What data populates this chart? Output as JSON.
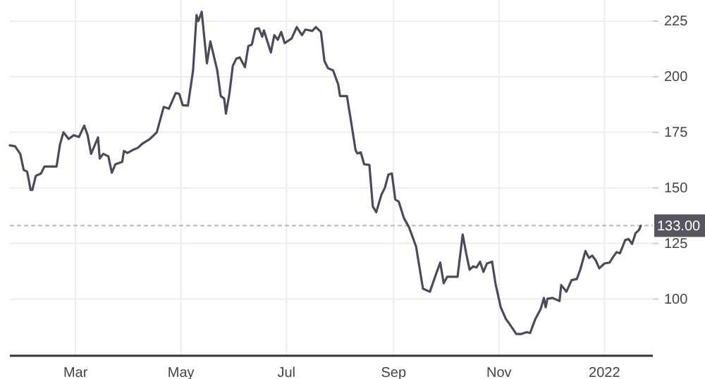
{
  "chart_data": {
    "type": "line",
    "x": [
      "2021-01-22",
      "2021-01-25",
      "2021-01-28",
      "2021-01-30",
      "2021-02-01",
      "2021-02-03",
      "2021-02-04",
      "2021-02-06",
      "2021-02-09",
      "2021-02-11",
      "2021-02-18",
      "2021-02-20",
      "2021-02-22",
      "2021-02-25",
      "2021-02-28",
      "2021-03-03",
      "2021-03-06",
      "2021-03-08",
      "2021-03-10",
      "2021-03-14",
      "2021-03-15",
      "2021-03-17",
      "2021-03-20",
      "2021-03-22",
      "2021-03-24",
      "2021-03-28",
      "2021-03-29",
      "2021-03-31",
      "2021-04-03",
      "2021-04-06",
      "2021-04-09",
      "2021-04-13",
      "2021-04-17",
      "2021-04-21",
      "2021-04-24",
      "2021-04-28",
      "2021-04-30",
      "2021-05-02",
      "2021-05-05",
      "2021-05-08",
      "2021-05-10",
      "2021-05-11",
      "2021-05-13",
      "2021-05-16",
      "2021-05-18",
      "2021-05-22",
      "2021-05-24",
      "2021-05-26",
      "2021-05-27",
      "2021-05-29",
      "2021-05-31",
      "2021-06-02",
      "2021-06-04",
      "2021-06-07",
      "2021-06-09",
      "2021-06-11",
      "2021-06-13",
      "2021-06-15",
      "2021-06-17",
      "2021-06-18",
      "2021-06-22",
      "2021-06-24",
      "2021-06-26",
      "2021-06-28",
      "2021-06-30",
      "2021-07-04",
      "2021-07-07",
      "2021-07-10",
      "2021-07-12",
      "2021-07-16",
      "2021-07-18",
      "2021-07-21",
      "2021-07-23",
      "2021-07-25",
      "2021-07-28",
      "2021-07-31",
      "2021-08-01",
      "2021-08-05",
      "2021-08-07",
      "2021-08-10",
      "2021-08-11",
      "2021-08-13",
      "2021-08-15",
      "2021-08-18",
      "2021-08-20",
      "2021-08-22",
      "2021-08-25",
      "2021-08-27",
      "2021-08-29",
      "2021-08-31",
      "2021-09-02",
      "2021-09-04",
      "2021-09-07",
      "2021-09-10",
      "2021-09-14",
      "2021-09-18",
      "2021-09-22",
      "2021-09-26",
      "2021-09-28",
      "2021-09-30",
      "2021-10-02",
      "2021-10-08",
      "2021-10-11",
      "2021-10-13",
      "2021-10-15",
      "2021-10-17",
      "2021-10-19",
      "2021-10-21",
      "2021-10-23",
      "2021-10-25",
      "2021-10-28",
      "2021-10-30",
      "2021-11-02",
      "2021-11-05",
      "2021-11-07",
      "2021-11-11",
      "2021-11-14",
      "2021-11-17",
      "2021-11-19",
      "2021-11-22",
      "2021-11-25",
      "2021-11-27",
      "2021-11-28",
      "2021-11-29",
      "2021-12-02",
      "2021-12-06",
      "2021-12-07",
      "2021-12-10",
      "2021-12-13",
      "2021-12-16",
      "2021-12-18",
      "2021-12-21",
      "2021-12-23",
      "2021-12-25",
      "2021-12-27",
      "2021-12-29",
      "2022-01-01",
      "2022-01-04",
      "2022-01-06",
      "2022-01-08",
      "2022-01-10",
      "2022-01-13",
      "2022-01-15",
      "2022-01-17",
      "2022-01-19",
      "2022-01-21",
      "2022-01-22"
    ],
    "series": [
      {
        "color": "#4b4b5c",
        "values": [
          169.1,
          168.7,
          165.3,
          158.1,
          157.3,
          149.1,
          149.1,
          155.4,
          156.5,
          159.6,
          159.6,
          169.5,
          175,
          172,
          173.7,
          172.9,
          178,
          173.7,
          165.3,
          172.7,
          163.2,
          165.3,
          164.2,
          156.8,
          160.6,
          161.7,
          166.6,
          165.7,
          167,
          168,
          170.1,
          172,
          175,
          186.4,
          185.6,
          192.7,
          192.3,
          187.2,
          187,
          202.8,
          227.7,
          225,
          229.2,
          206,
          215.9,
          202.8,
          191.3,
          190.2,
          183.4,
          192.3,
          204.9,
          208.1,
          208.7,
          204.3,
          213.8,
          214.4,
          221.4,
          221.8,
          218,
          220.8,
          210.9,
          218.7,
          216.6,
          220.1,
          215.1,
          217.2,
          222.3,
          218.7,
          221.2,
          220.6,
          222.3,
          220.1,
          207.1,
          203.9,
          202.8,
          196.5,
          191.3,
          191.3,
          181.8,
          167,
          165.5,
          166,
          160.6,
          160.3,
          141.6,
          139.1,
          147,
          150.1,
          156,
          156.5,
          144.8,
          143.8,
          136.4,
          132.2,
          123.7,
          104.7,
          103.3,
          112.2,
          116.4,
          107.1,
          110,
          110,
          129,
          120.6,
          113.2,
          114.7,
          114.2,
          116.8,
          112.2,
          116,
          116.8,
          106.8,
          96.3,
          91,
          88.9,
          84.3,
          84.3,
          85.1,
          84.7,
          91,
          95.3,
          100.5,
          96.3,
          100.1,
          100.5,
          99.1,
          106.3,
          103.3,
          108.5,
          109,
          113.2,
          121.6,
          118.5,
          119.5,
          117.4,
          113.8,
          116,
          116.4,
          118.9,
          121.1,
          120.6,
          126.5,
          127,
          124.8,
          129.6,
          131.1,
          133
        ]
      }
    ],
    "xlim": [
      "2021-01-22",
      "2022-01-29"
    ],
    "xticks": [
      {
        "value": "2021-03-01",
        "label": "Mar"
      },
      {
        "value": "2021-05-01",
        "label": "May"
      },
      {
        "value": "2021-07-01",
        "label": "Jul"
      },
      {
        "value": "2021-09-01",
        "label": "Sep"
      },
      {
        "value": "2021-11-01",
        "label": "Nov"
      },
      {
        "value": "2022-01-01",
        "label": "2022"
      }
    ],
    "ylim": [
      74.5,
      234.5
    ],
    "yticks": [
      100,
      125,
      150,
      175,
      200,
      225
    ],
    "grid": true,
    "ref_lines": [
      {
        "axis": "y",
        "value": 133,
        "label": "133.00",
        "color": "#b8b8cc",
        "line_style": "dashed"
      }
    ]
  }
}
